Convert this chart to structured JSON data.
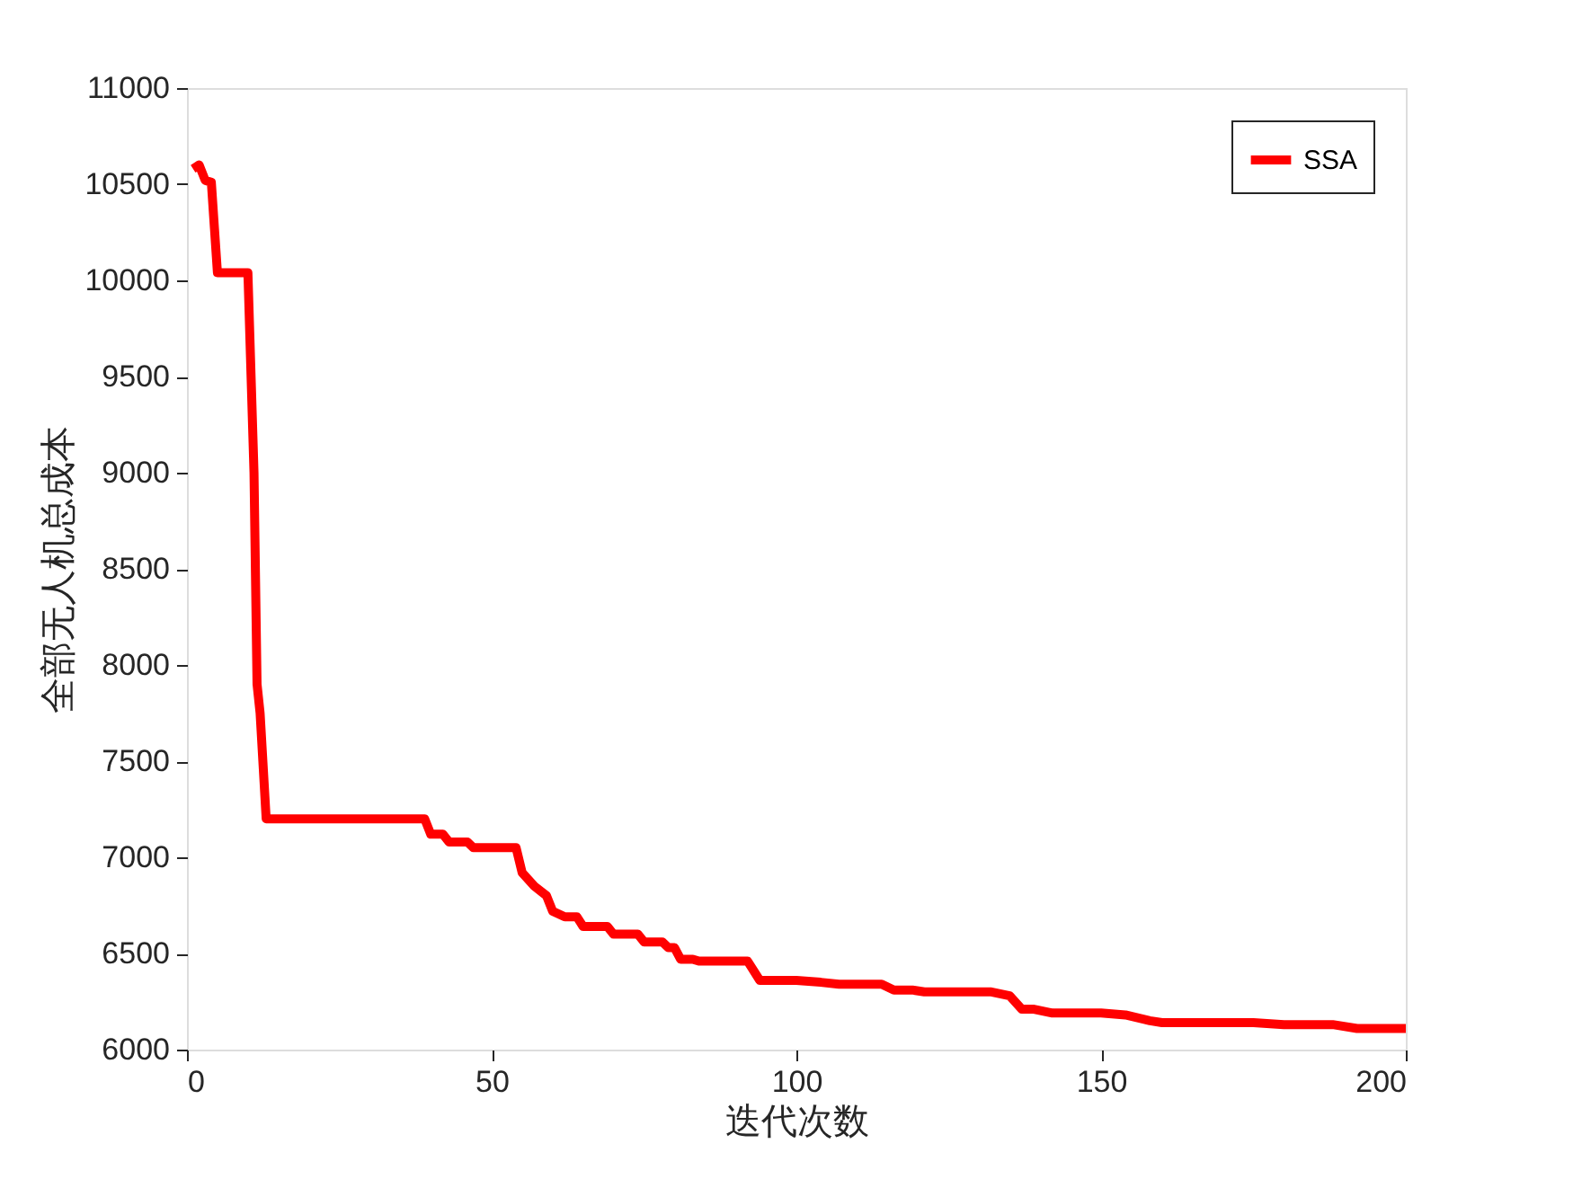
{
  "chart_data": {
    "type": "line",
    "xlabel": "迭代次数",
    "ylabel": "全部无人机总成本",
    "xlim": [
      0,
      200
    ],
    "ylim": [
      6000,
      11000
    ],
    "xticks": [
      0,
      50,
      100,
      150,
      200
    ],
    "yticks": [
      6000,
      6500,
      7000,
      7500,
      8000,
      8500,
      9000,
      9500,
      10000,
      10500,
      11000
    ],
    "grid": false,
    "legend": "top right",
    "marker": "none",
    "line_style": "solid",
    "series": [
      {
        "name": "SSA",
        "color": "#ff0000",
        "x": [
          1,
          2,
          3,
          4,
          5,
          6,
          10,
          11,
          11.5,
          12,
          13,
          39,
          40,
          42,
          43,
          46,
          47,
          54,
          55,
          57,
          59,
          60,
          62,
          64,
          65,
          69,
          70,
          74,
          75,
          78,
          79,
          80,
          81,
          83,
          84,
          92,
          94,
          100,
          104,
          107,
          114,
          116,
          119,
          121,
          132,
          135,
          137,
          139,
          142,
          150,
          154,
          158,
          160,
          175,
          180,
          188,
          192,
          200
        ],
        "values": [
          10580,
          10600,
          10520,
          10510,
          10040,
          10040,
          10040,
          9000,
          7900,
          7750,
          7200,
          7200,
          7120,
          7120,
          7080,
          7080,
          7050,
          7050,
          6920,
          6850,
          6800,
          6720,
          6690,
          6690,
          6640,
          6640,
          6600,
          6600,
          6560,
          6560,
          6530,
          6530,
          6470,
          6470,
          6460,
          6460,
          6360,
          6360,
          6350,
          6340,
          6340,
          6310,
          6310,
          6300,
          6300,
          6280,
          6210,
          6210,
          6190,
          6190,
          6180,
          6150,
          6140,
          6140,
          6130,
          6130,
          6110,
          6110
        ]
      }
    ]
  }
}
